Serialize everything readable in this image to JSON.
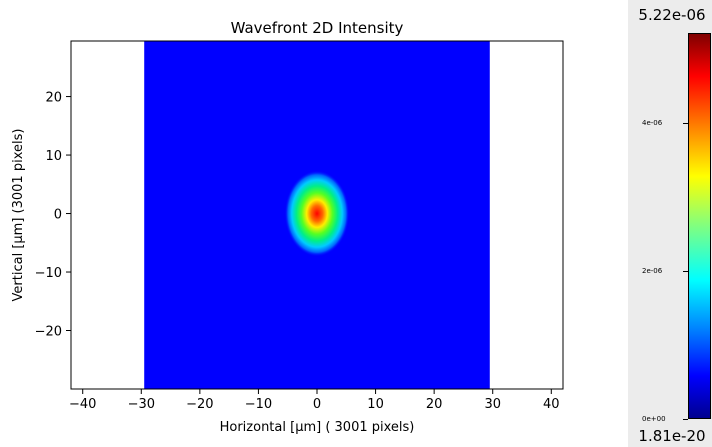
{
  "chart_data": {
    "type": "heatmap",
    "title": "Wavefront 2D Intensity",
    "xlabel": "Horizontal [μm] ( 3001 pixels)",
    "ylabel": "Vertical [μm] (3001 pixels)",
    "xlim": [
      -42,
      42
    ],
    "ylim": [
      -30,
      29.5
    ],
    "xticks": [
      -40,
      -30,
      -20,
      -10,
      0,
      10,
      20,
      30,
      40
    ],
    "yticks": [
      -20,
      -10,
      0,
      10,
      20
    ],
    "field_extent": {
      "x": [
        -29.5,
        29.5
      ],
      "y": [
        -30,
        29.5
      ]
    },
    "spot": {
      "center": [
        0,
        0
      ],
      "sigma_x": 1.2,
      "sigma_y": 1.6
    },
    "colormap": "jet",
    "colorbar": {
      "max_label": "5.22e-06",
      "min_label": "1.81e-20",
      "ticks": [
        {
          "value": 0,
          "label": "0e+00"
        },
        {
          "value": 2e-06,
          "label": "2e-06"
        },
        {
          "value": 4e-06,
          "label": "4e-06"
        }
      ],
      "vmax": 5.22e-06
    }
  }
}
